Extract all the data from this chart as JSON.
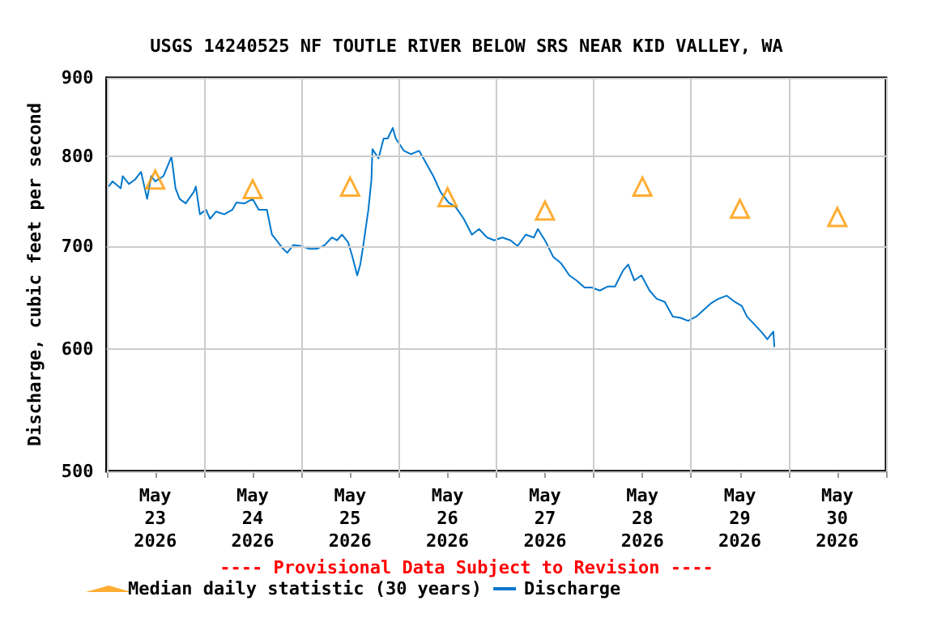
{
  "chart_data": {
    "type": "line",
    "title": "USGS 14240525 NF TOUTLE RIVER BELOW SRS NEAR KID VALLEY, WA",
    "ylabel": "Discharge, cubic feet per second",
    "annotations": [
      "---- Provisional Data Subject to Revision ----"
    ],
    "log": "y",
    "grid": true,
    "legend": "bottom left",
    "xlim": [
      "2026-05-23T00:00",
      "2026-05-31T00:00"
    ],
    "xticks": [
      {
        "value": "2026-05-23T00:00",
        "label": null
      },
      {
        "value": "2026-05-23T12:00",
        "label": "May\n23\n2026"
      },
      {
        "value": "2026-05-24T00:00",
        "label": null
      },
      {
        "value": "2026-05-24T12:00",
        "label": "May\n24\n2026"
      },
      {
        "value": "2026-05-25T00:00",
        "label": null
      },
      {
        "value": "2026-05-25T12:00",
        "label": "May\n25\n2026"
      },
      {
        "value": "2026-05-26T00:00",
        "label": null
      },
      {
        "value": "2026-05-26T12:00",
        "label": "May\n26\n2026"
      },
      {
        "value": "2026-05-27T00:00",
        "label": null
      },
      {
        "value": "2026-05-27T12:00",
        "label": "May\n27\n2026"
      },
      {
        "value": "2026-05-28T00:00",
        "label": null
      },
      {
        "value": "2026-05-28T12:00",
        "label": "May\n28\n2026"
      },
      {
        "value": "2026-05-29T00:00",
        "label": null
      },
      {
        "value": "2026-05-29T12:00",
        "label": "May\n29\n2026"
      },
      {
        "value": "2026-05-30T00:00",
        "label": null
      },
      {
        "value": "2026-05-30T12:00",
        "label": "May\n30\n2026"
      },
      {
        "value": "2026-05-31T00:00",
        "label": null
      }
    ],
    "ylim": [
      500,
      900
    ],
    "yticks": [
      500,
      600,
      700,
      800,
      900
    ],
    "series": [
      {
        "name": "Median daily statistic (30 years)",
        "type": "scatter",
        "marker": "triangle",
        "color": "#ff9900",
        "x": [
          "2026-05-23T12:00",
          "2026-05-24T12:00",
          "2026-05-25T12:00",
          "2026-05-26T12:00",
          "2026-05-27T12:00",
          "2026-05-28T12:00",
          "2026-05-29T12:00",
          "2026-05-30T12:00"
        ],
        "values": [
          773,
          762,
          765,
          753,
          738,
          765,
          740,
          731
        ]
      },
      {
        "name": "Discharge",
        "type": "line",
        "marker": "none",
        "color": "#0077cc",
        "x": [
          "2026-05-23T00:30",
          "2026-05-23T01:30",
          "2026-05-23T03:30",
          "2026-05-23T04:00",
          "2026-05-23T05:30",
          "2026-05-23T07:00",
          "2026-05-23T08:30",
          "2026-05-23T10:00",
          "2026-05-23T11:00",
          "2026-05-23T12:00",
          "2026-05-23T14:00",
          "2026-05-23T15:30",
          "2026-05-23T16:00",
          "2026-05-23T17:00",
          "2026-05-23T18:00",
          "2026-05-23T19:30",
          "2026-05-23T21:30",
          "2026-05-23T22:00",
          "2026-05-23T23:00",
          "2026-05-24T00:30",
          "2026-05-24T01:30",
          "2026-05-24T03:00",
          "2026-05-24T05:00",
          "2026-05-24T07:00",
          "2026-05-24T08:00",
          "2026-05-24T10:00",
          "2026-05-24T12:00",
          "2026-05-24T13:30",
          "2026-05-24T15:30",
          "2026-05-24T16:45",
          "2026-05-24T18:15",
          "2026-05-24T19:30",
          "2026-05-24T20:30",
          "2026-05-24T22:00",
          "2026-05-25T00:00",
          "2026-05-25T02:00",
          "2026-05-25T03:45",
          "2026-05-25T05:45",
          "2026-05-25T07:30",
          "2026-05-25T08:45",
          "2026-05-25T10:00",
          "2026-05-25T11:30",
          "2026-05-25T12:30",
          "2026-05-25T13:45",
          "2026-05-25T14:30",
          "2026-05-25T15:15",
          "2026-05-25T16:30",
          "2026-05-25T17:15",
          "2026-05-25T17:30",
          "2026-05-25T19:00",
          "2026-05-25T20:15",
          "2026-05-25T21:15",
          "2026-05-25T22:30",
          "2026-05-25T23:15",
          "2026-05-26T01:15",
          "2026-05-26T03:00",
          "2026-05-26T05:00",
          "2026-05-26T06:30",
          "2026-05-26T08:30",
          "2026-05-26T10:15",
          "2026-05-26T12:15",
          "2026-05-26T14:00",
          "2026-05-26T16:00",
          "2026-05-26T18:00",
          "2026-05-26T19:45",
          "2026-05-26T21:45",
          "2026-05-26T23:30",
          "2026-05-27T01:30",
          "2026-05-27T03:30",
          "2026-05-27T05:15",
          "2026-05-27T07:15",
          "2026-05-27T09:15",
          "2026-05-27T10:15",
          "2026-05-27T12:15",
          "2026-05-27T14:00",
          "2026-05-27T16:00",
          "2026-05-27T18:00",
          "2026-05-27T19:45",
          "2026-05-27T21:45",
          "2026-05-27T23:30",
          "2026-05-28T01:30",
          "2026-05-28T03:30",
          "2026-05-28T05:15",
          "2026-05-28T07:15",
          "2026-05-28T08:30",
          "2026-05-28T10:00",
          "2026-05-28T11:45",
          "2026-05-28T13:45",
          "2026-05-28T15:30",
          "2026-05-28T17:30",
          "2026-05-28T19:30",
          "2026-05-28T21:15",
          "2026-05-28T23:15",
          "2026-05-29T01:15",
          "2026-05-29T03:00",
          "2026-05-29T05:00",
          "2026-05-29T06:45",
          "2026-05-29T08:45",
          "2026-05-29T10:45",
          "2026-05-29T12:30",
          "2026-05-29T13:45",
          "2026-05-29T15:30",
          "2026-05-29T17:30",
          "2026-05-29T18:45",
          "2026-05-29T20:15",
          "2026-05-29T20:30"
        ],
        "values": [
          765,
          771,
          763,
          777,
          768,
          773,
          782,
          751,
          777,
          771,
          777,
          794,
          800,
          763,
          751,
          746,
          759,
          765,
          734,
          739,
          729,
          737,
          734,
          739,
          747,
          746,
          751,
          739,
          739,
          712,
          704,
          697,
          693,
          701,
          700,
          697,
          697,
          701,
          709,
          706,
          712,
          704,
          690,
          670,
          681,
          701,
          739,
          773,
          809,
          798,
          822,
          822,
          835,
          822,
          807,
          803,
          807,
          794,
          777,
          759,
          747,
          742,
          729,
          712,
          718,
          709,
          706,
          709,
          706,
          700,
          712,
          709,
          718,
          704,
          689,
          682,
          670,
          665,
          658,
          658,
          655,
          659,
          659,
          675,
          681,
          665,
          670,
          655,
          647,
          644,
          630,
          629,
          626,
          630,
          636,
          643,
          647,
          650,
          644,
          640,
          630,
          623,
          615,
          609,
          616,
          602
        ]
      }
    ]
  }
}
